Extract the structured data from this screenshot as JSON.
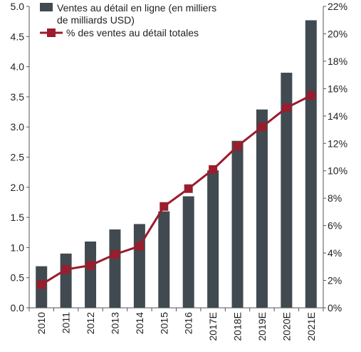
{
  "chart_data": {
    "type": "bar+line",
    "categories": [
      "2010",
      "2011",
      "2012",
      "2013",
      "2014",
      "2015",
      "2016",
      "2017E",
      "2018E",
      "2019E",
      "2020E",
      "2021E"
    ],
    "series": [
      {
        "name": "Ventes au détail en ligne (en milliers de milliards USD)",
        "name_lines": [
          "Ventes au détail en ligne (en milliers",
          "de milliards USD)"
        ],
        "type": "bar",
        "axis": "left",
        "color": "#404a50",
        "values": [
          0.69,
          0.9,
          1.1,
          1.3,
          1.39,
          1.6,
          1.85,
          2.28,
          2.77,
          3.29,
          3.9,
          4.77
        ]
      },
      {
        "name": "% des ventes au détail totales",
        "type": "line",
        "axis": "right",
        "color": "#9b1c2c",
        "values": [
          1.7,
          2.8,
          3.1,
          3.9,
          4.5,
          7.4,
          8.7,
          10.1,
          11.8,
          13.2,
          14.6,
          15.5
        ]
      }
    ],
    "y_left": {
      "lim": [
        0,
        5.0
      ],
      "ticks": [
        "0.0",
        "0.5",
        "1.0",
        "1.5",
        "2.0",
        "2.5",
        "3.0",
        "3.5",
        "4.0",
        "4.5",
        "5.0"
      ]
    },
    "y_right": {
      "lim": [
        0,
        22
      ],
      "ticks": [
        "0%",
        "2%",
        "4%",
        "6%",
        "8%",
        "10%",
        "12%",
        "14%",
        "16%",
        "18%",
        "20%",
        "22%"
      ]
    },
    "legend": "top-left",
    "grid": false
  }
}
